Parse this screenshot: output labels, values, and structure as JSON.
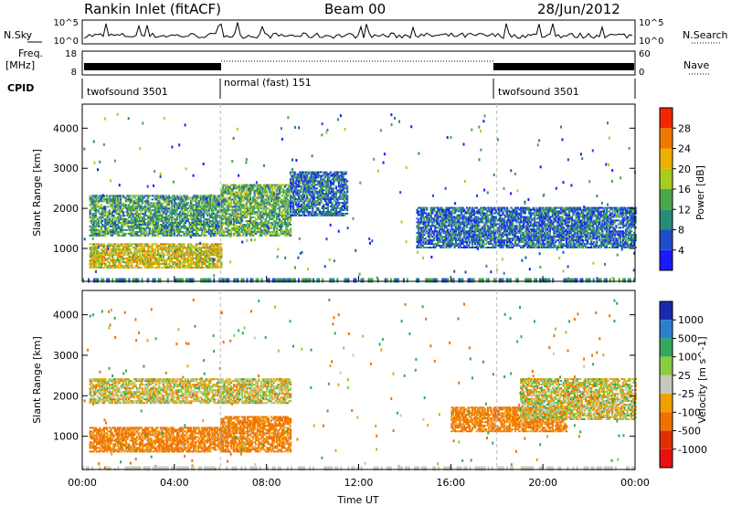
{
  "header": {
    "station": "Rankin Inlet (fitACF)",
    "beam": "Beam 00",
    "date": "28/Jun/2012"
  },
  "top_panels": {
    "nsky_label": "N.Sky",
    "nsearch_label": "N.Search",
    "noise_ticks_left": [
      "10^5",
      "10^0"
    ],
    "noise_ticks_right": [
      "10^5",
      "10^0"
    ],
    "freq_label_1": "Freq.",
    "freq_label_2": "[MHz]",
    "freq_ticks": [
      "18",
      "8"
    ],
    "nave_label": "Nave",
    "nave_ticks": [
      "60",
      "0"
    ],
    "cpid_label": "CPID",
    "cpid_segments": [
      {
        "label": "twofsound 3501",
        "start_hour": 0,
        "end_hour": 6
      },
      {
        "label": "normal (fast) 151",
        "start_hour": 6,
        "end_hour": 18
      },
      {
        "label": "twofsound 3501",
        "start_hour": 18,
        "end_hour": 24
      }
    ]
  },
  "colors": {
    "power_scale": [
      "#1a1aff",
      "#1f4fc8",
      "#2a8a7a",
      "#4aa64a",
      "#a8cc20",
      "#f0b000",
      "#f07800",
      "#f02800"
    ],
    "velocity_scale": [
      "#1a2ab0",
      "#2e7ed0",
      "#33a85a",
      "#8ccc40",
      "#c8c8c0",
      "#f0a000",
      "#f07000",
      "#e03000",
      "#e81010"
    ]
  },
  "chart_data": [
    {
      "type": "heatmap",
      "name": "Power",
      "title": "",
      "xlabel": "Time UT",
      "ylabel": "Slant Range [km]",
      "xlim": [
        0,
        24
      ],
      "ylim": [
        180,
        4600
      ],
      "x_ticks": [
        "00:00",
        "04:00",
        "08:00",
        "12:00",
        "16:00",
        "20:00",
        "00:00"
      ],
      "y_ticks": [
        "1000",
        "2000",
        "3000",
        "4000"
      ],
      "colorbar_label": "Power [dB]",
      "colorbar_ticks": [
        "4",
        "8",
        "12",
        "16",
        "20",
        "24",
        "28"
      ],
      "colorbar_range": [
        0,
        32
      ],
      "echo_regions": [
        {
          "start_hour": 0.3,
          "end_hour": 6.0,
          "range_km": [
            1300,
            2300
          ],
          "power_db": 12
        },
        {
          "start_hour": 0.3,
          "end_hour": 6.0,
          "range_km": [
            500,
            1100
          ],
          "power_db": 20
        },
        {
          "start_hour": 6.0,
          "end_hour": 9.0,
          "range_km": [
            1300,
            2600
          ],
          "power_db": 14
        },
        {
          "start_hour": 9.0,
          "end_hour": 11.5,
          "range_km": [
            1800,
            2900
          ],
          "power_db": 8
        },
        {
          "start_hour": 14.5,
          "end_hour": 24.0,
          "range_km": [
            1000,
            2000
          ],
          "power_db": 8
        }
      ]
    },
    {
      "type": "heatmap",
      "name": "Velocity",
      "title": "",
      "xlabel": "Time UT",
      "ylabel": "Slant Range [km]",
      "xlim": [
        0,
        24
      ],
      "ylim": [
        180,
        4600
      ],
      "x_ticks": [
        "00:00",
        "04:00",
        "08:00",
        "12:00",
        "16:00",
        "20:00",
        "00:00"
      ],
      "y_ticks": [
        "1000",
        "2000",
        "3000",
        "4000"
      ],
      "colorbar_label": "Velocity [m s^-1]",
      "colorbar_ticks": [
        "1000",
        "500",
        "100",
        "25",
        "-25",
        "-100",
        "-500",
        "-1000"
      ],
      "echo_regions": [
        {
          "start_hour": 0.3,
          "end_hour": 9.0,
          "range_km": [
            1800,
            2400
          ],
          "velocity_ms": 0
        },
        {
          "start_hour": 0.3,
          "end_hour": 6.0,
          "range_km": [
            600,
            1200
          ],
          "velocity_ms": -150
        },
        {
          "start_hour": 6.0,
          "end_hour": 9.0,
          "range_km": [
            600,
            1500
          ],
          "velocity_ms": -150
        },
        {
          "start_hour": 16.0,
          "end_hour": 21.0,
          "range_km": [
            1100,
            1700
          ],
          "velocity_ms": -150
        },
        {
          "start_hour": 19.0,
          "end_hour": 24.0,
          "range_km": [
            1400,
            2400
          ],
          "velocity_ms": 0
        }
      ]
    }
  ]
}
